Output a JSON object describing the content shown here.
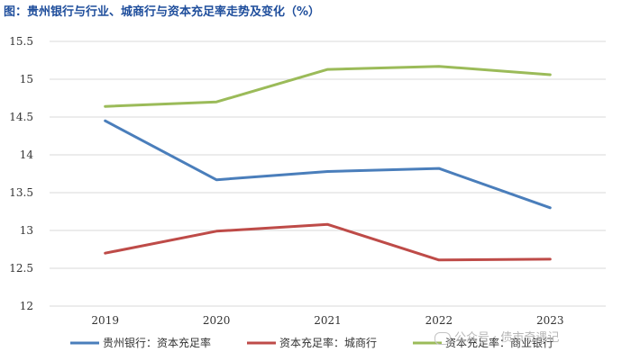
{
  "title": "图：贵州银行与行业、城商行与资本充足率走势及变化（%）",
  "watermark": "公众号 · 债市奇遇记",
  "chart_data": {
    "type": "line",
    "title": "图：贵州银行与行业、城商行与资本充足率走势及变化（%）",
    "x": [
      "2019",
      "2020",
      "2021",
      "2022",
      "2023"
    ],
    "ylim": [
      12,
      15.5
    ],
    "yticks": [
      "12",
      "12.5",
      "13",
      "13.5",
      "14",
      "14.5",
      "15",
      "15.5"
    ],
    "grid": "horizontal",
    "legend_position": "bottom",
    "series": [
      {
        "name": "贵州银行：资本充足率",
        "color": "#4a7ebb",
        "values": [
          14.45,
          13.67,
          13.78,
          13.82,
          13.3
        ]
      },
      {
        "name": "资本充足率：城商行",
        "color": "#be4b48",
        "values": [
          12.7,
          12.99,
          13.08,
          12.61,
          12.62
        ]
      },
      {
        "name": "资本充足率：商业银行",
        "color": "#9bbb59",
        "values": [
          14.64,
          14.7,
          15.13,
          15.17,
          15.06
        ]
      }
    ]
  }
}
